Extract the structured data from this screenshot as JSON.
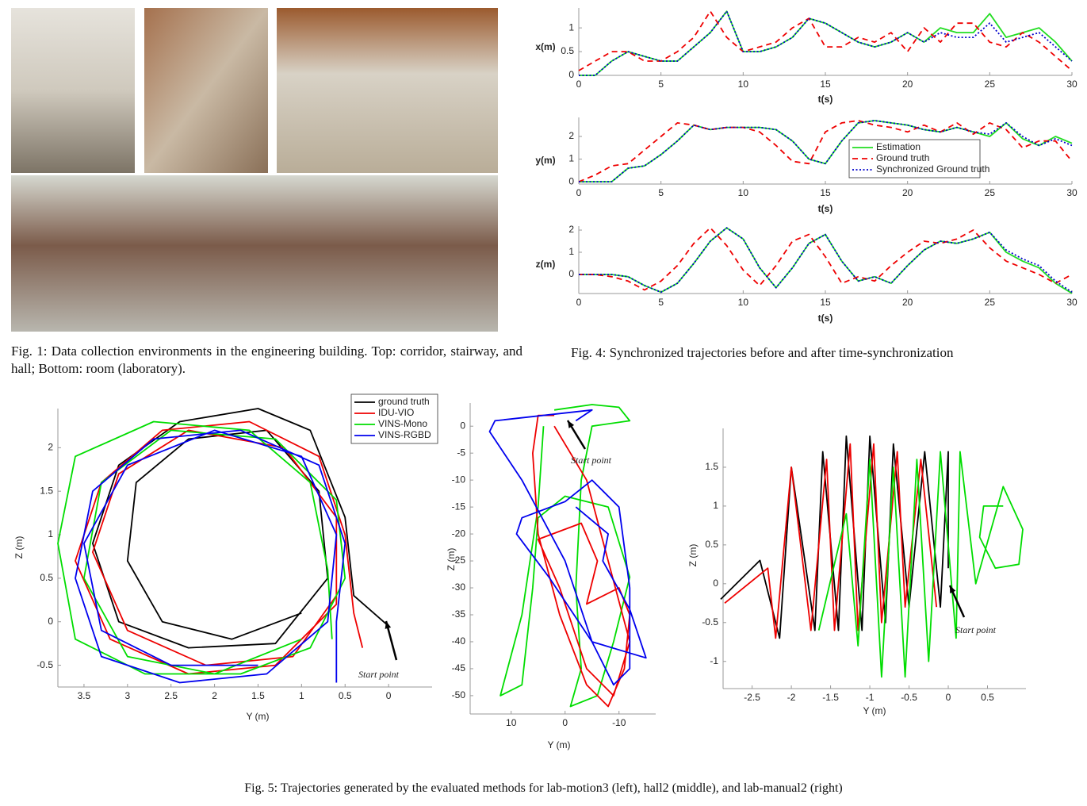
{
  "fig1_caption": "Fig. 1: Data collection environments in the engineering building. Top: corridor, stairway, and hall; Bottom: room (laboratory).",
  "fig4_caption": "Fig. 4: Synchronized trajectories before and after time-synchronization",
  "fig5_caption": "Fig. 5: Trajectories generated by the evaluated methods for lab-motion3 (left), hall2 (middle), and lab-manual2 (right)",
  "chart_data": [
    {
      "type": "line",
      "xlabel": "t(s)",
      "ylabel": "x(m)",
      "xlim": [
        0,
        30
      ],
      "ylim": [
        0,
        1.42
      ],
      "xticks": [
        0,
        5,
        10,
        15,
        20,
        25,
        30
      ],
      "yticks": [
        0,
        0.5,
        1
      ],
      "x": [
        0,
        1,
        2,
        3,
        4,
        5,
        6,
        7,
        8,
        9,
        10,
        11,
        12,
        13,
        14,
        15,
        16,
        17,
        18,
        19,
        20,
        21,
        22,
        23,
        24,
        25,
        26,
        27,
        28,
        29,
        30
      ],
      "series": [
        {
          "name": "Estimation",
          "color": "#22dd22",
          "line_style": "solid",
          "values": [
            0,
            0,
            0.3,
            0.5,
            0.4,
            0.3,
            0.3,
            0.6,
            0.9,
            1.35,
            0.5,
            0.5,
            0.6,
            0.8,
            1.2,
            1.1,
            0.9,
            0.7,
            0.6,
            0.7,
            0.9,
            0.7,
            1.0,
            0.9,
            0.9,
            1.3,
            0.8,
            0.9,
            1.0,
            0.7,
            0.3
          ]
        },
        {
          "name": "Ground truth",
          "color": "#ee0000",
          "line_style": "dashed",
          "values": [
            0.1,
            0.3,
            0.5,
            0.5,
            0.3,
            0.3,
            0.5,
            0.8,
            1.35,
            0.8,
            0.5,
            0.6,
            0.7,
            1.0,
            1.2,
            0.6,
            0.6,
            0.8,
            0.7,
            0.9,
            0.5,
            1.0,
            0.7,
            1.1,
            1.1,
            0.7,
            0.6,
            0.9,
            0.7,
            0.4,
            0.1
          ]
        },
        {
          "name": "Synchronized Ground truth",
          "color": "#0000cc",
          "line_style": "dotted",
          "values": [
            0,
            0,
            0.3,
            0.5,
            0.4,
            0.3,
            0.3,
            0.6,
            0.9,
            1.35,
            0.5,
            0.5,
            0.6,
            0.8,
            1.2,
            1.1,
            0.9,
            0.7,
            0.6,
            0.7,
            0.9,
            0.7,
            0.9,
            0.8,
            0.8,
            1.1,
            0.7,
            0.8,
            0.9,
            0.6,
            0.3
          ]
        }
      ]
    },
    {
      "type": "line",
      "xlabel": "t(s)",
      "ylabel": "y(m)",
      "xlim": [
        0,
        30
      ],
      "ylim": [
        -0.1,
        2.84
      ],
      "xticks": [
        0,
        5,
        10,
        15,
        20,
        25,
        30
      ],
      "yticks": [
        0,
        1,
        2
      ],
      "legend": "center right",
      "x": [
        0,
        1,
        2,
        3,
        4,
        5,
        6,
        7,
        8,
        9,
        10,
        11,
        12,
        13,
        14,
        15,
        16,
        17,
        18,
        19,
        20,
        21,
        22,
        23,
        24,
        25,
        26,
        27,
        28,
        29,
        30
      ],
      "series": [
        {
          "name": "Estimation",
          "color": "#22dd22",
          "line_style": "solid",
          "values": [
            0,
            0,
            0,
            0.6,
            0.7,
            1.2,
            1.8,
            2.5,
            2.3,
            2.4,
            2.4,
            2.4,
            2.3,
            1.8,
            1.0,
            0.8,
            1.8,
            2.6,
            2.7,
            2.6,
            2.5,
            2.3,
            2.2,
            2.4,
            2.2,
            2.0,
            2.6,
            1.9,
            1.6,
            2.0,
            1.7
          ]
        },
        {
          "name": "Ground truth",
          "color": "#ee0000",
          "line_style": "dashed",
          "values": [
            0,
            0.3,
            0.7,
            0.8,
            1.4,
            2.0,
            2.6,
            2.5,
            2.3,
            2.4,
            2.4,
            2.2,
            1.6,
            0.9,
            0.8,
            2.2,
            2.6,
            2.7,
            2.5,
            2.4,
            2.2,
            2.5,
            2.2,
            2.6,
            2.1,
            2.6,
            2.3,
            1.5,
            1.8,
            1.8,
            0.9
          ]
        },
        {
          "name": "Synchronized Ground truth",
          "color": "#0000cc",
          "line_style": "dotted",
          "values": [
            0,
            0,
            0,
            0.6,
            0.7,
            1.2,
            1.8,
            2.5,
            2.3,
            2.4,
            2.4,
            2.4,
            2.3,
            1.8,
            1.0,
            0.8,
            1.8,
            2.6,
            2.7,
            2.6,
            2.5,
            2.3,
            2.2,
            2.4,
            2.2,
            2.1,
            2.6,
            2.0,
            1.6,
            1.9,
            1.6
          ]
        }
      ]
    },
    {
      "type": "line",
      "xlabel": "t(s)",
      "ylabel": "z(m)",
      "xlim": [
        0,
        30
      ],
      "ylim": [
        -0.86,
        2.18
      ],
      "xticks": [
        0,
        5,
        10,
        15,
        20,
        25,
        30
      ],
      "yticks": [
        0,
        1,
        2
      ],
      "x": [
        0,
        1,
        2,
        3,
        4,
        5,
        6,
        7,
        8,
        9,
        10,
        11,
        12,
        13,
        14,
        15,
        16,
        17,
        18,
        19,
        20,
        21,
        22,
        23,
        24,
        25,
        26,
        27,
        28,
        29,
        30
      ],
      "series": [
        {
          "name": "Estimation",
          "color": "#22dd22",
          "line_style": "solid",
          "values": [
            0,
            0,
            0,
            -0.1,
            -0.5,
            -0.8,
            -0.4,
            0.5,
            1.5,
            2.1,
            1.6,
            0.3,
            -0.6,
            0.3,
            1.4,
            1.8,
            0.6,
            -0.3,
            -0.1,
            -0.4,
            0.4,
            1.1,
            1.5,
            1.4,
            1.6,
            1.9,
            1.0,
            0.6,
            0.3,
            -0.4,
            -0.85
          ]
        },
        {
          "name": "Ground truth",
          "color": "#ee0000",
          "line_style": "dashed",
          "values": [
            0,
            0,
            -0.1,
            -0.3,
            -0.7,
            -0.3,
            0.4,
            1.4,
            2.1,
            1.3,
            0.2,
            -0.5,
            0.4,
            1.5,
            1.8,
            0.8,
            -0.4,
            -0.1,
            -0.3,
            0.4,
            1.0,
            1.5,
            1.4,
            1.6,
            2.0,
            1.2,
            0.6,
            0.3,
            0.0,
            -0.4,
            0.0
          ]
        },
        {
          "name": "Synchronized Ground truth",
          "color": "#0000cc",
          "line_style": "dotted",
          "values": [
            0,
            0,
            0,
            -0.1,
            -0.5,
            -0.8,
            -0.4,
            0.5,
            1.5,
            2.1,
            1.6,
            0.3,
            -0.6,
            0.3,
            1.4,
            1.8,
            0.6,
            -0.3,
            -0.1,
            -0.4,
            0.4,
            1.1,
            1.5,
            1.4,
            1.6,
            1.9,
            1.1,
            0.7,
            0.4,
            -0.3,
            -0.8
          ]
        }
      ]
    },
    {
      "type": "line",
      "xlabel": "Y (m)",
      "ylabel": "Z (m)",
      "xlim": [
        3.8,
        -0.5
      ],
      "ylim": [
        -0.75,
        2.45
      ],
      "xticks": [
        3.5,
        3,
        2.5,
        2,
        1.5,
        1,
        0.5,
        0
      ],
      "yticks": [
        -0.5,
        0,
        0.5,
        1,
        1.5,
        2
      ],
      "legend": "upper right",
      "annotation": "Start point",
      "series": [
        {
          "name": "ground truth",
          "color": "#000000",
          "line_style": "solid",
          "x": [
            0,
            0.4,
            0.5,
            0.9,
            1.5,
            2.4,
            3.1,
            3.4,
            3.1,
            2.3,
            1.3,
            0.7,
            0.8,
            1.4,
            2.3,
            2.9,
            3.0,
            2.6,
            1.8,
            1.0
          ],
          "y": [
            -0.05,
            0.3,
            1.2,
            2.2,
            2.45,
            2.3,
            1.8,
            0.9,
            0.0,
            -0.3,
            -0.25,
            0.5,
            1.5,
            2.2,
            2.1,
            1.6,
            0.7,
            0.0,
            -0.2,
            0.1
          ]
        },
        {
          "name": "IDU-VIO",
          "color": "#ee0000",
          "line_style": "solid",
          "x": [
            0.3,
            0.4,
            0.5,
            0.8,
            1.6,
            2.6,
            3.3,
            3.6,
            3.2,
            2.3,
            1.3,
            0.6,
            0.6,
            1.2,
            2.3,
            3.1,
            3.4,
            3.0,
            2.1,
            1.1,
            0.6
          ],
          "y": [
            -0.3,
            0.1,
            1.0,
            1.9,
            2.3,
            2.2,
            1.6,
            0.7,
            -0.2,
            -0.6,
            -0.5,
            0.2,
            1.2,
            2.0,
            2.2,
            1.7,
            0.8,
            -0.1,
            -0.5,
            -0.4,
            0.3
          ]
        },
        {
          "name": "VINS-Mono",
          "color": "#00dd00",
          "line_style": "solid",
          "x": [
            0.65,
            0.7,
            0.9,
            1.6,
            2.7,
            3.6,
            3.8,
            3.6,
            2.8,
            1.7,
            0.9,
            0.5,
            0.6,
            1.3,
            2.5,
            3.3,
            3.5,
            3.0,
            2.0,
            1.0
          ],
          "y": [
            -0.2,
            0.6,
            1.6,
            2.2,
            2.3,
            1.9,
            0.9,
            -0.2,
            -0.6,
            -0.6,
            -0.3,
            0.5,
            1.4,
            2.1,
            2.2,
            1.6,
            0.5,
            -0.4,
            -0.6,
            -0.2
          ]
        },
        {
          "name": "VINS-RGBD",
          "color": "#0000ee",
          "line_style": "solid",
          "x": [
            0.6,
            0.6,
            0.5,
            0.8,
            1.7,
            2.7,
            3.4,
            3.6,
            3.3,
            2.4,
            1.4,
            0.7,
            0.6,
            1.0,
            2.0,
            3.0,
            3.5,
            3.3,
            2.5,
            1.5
          ],
          "y": [
            -0.7,
            0.0,
            0.9,
            1.8,
            2.2,
            2.1,
            1.5,
            0.5,
            -0.4,
            -0.7,
            -0.6,
            0.0,
            1.0,
            1.9,
            2.2,
            1.8,
            0.9,
            -0.1,
            -0.5,
            -0.5
          ]
        }
      ]
    },
    {
      "type": "line",
      "xlabel": "Y (m)",
      "ylabel": "Z (m)",
      "xlim": [
        17.6,
        -16.8
      ],
      "ylim": [
        -53.4,
        4.3
      ],
      "xticks": [
        10,
        0,
        -10
      ],
      "yticks": [
        0,
        -5,
        -10,
        -15,
        -20,
        -25,
        -30,
        -35,
        -40,
        -45,
        -50
      ],
      "annotation": "Start point",
      "series": [
        {
          "color": "#00dd00",
          "line_style": "solid",
          "x": [
            2,
            -5,
            -10,
            -12,
            -5,
            -3,
            -2,
            -3,
            -1,
            -6,
            -9,
            -12,
            -8,
            0,
            5,
            6,
            8,
            12,
            8,
            5,
            4
          ],
          "y": [
            3,
            4,
            3.5,
            1,
            0,
            -10,
            -30,
            -45,
            -52,
            -50,
            -40,
            -28,
            -15,
            -13,
            -17,
            -30,
            -48,
            -50,
            -35,
            -15,
            0
          ]
        },
        {
          "color": "#ee0000",
          "line_style": "solid",
          "x": [
            2,
            5,
            6,
            5,
            1,
            -4,
            -8,
            -11,
            -12,
            -10,
            -4,
            -6,
            -3,
            5,
            1,
            -4,
            -9,
            -12,
            -4,
            2
          ],
          "y": [
            2,
            2,
            -5,
            -20,
            -35,
            -48,
            -52,
            -45,
            -35,
            -30,
            -33,
            -25,
            -18,
            -21,
            -30,
            -45,
            -50,
            -40,
            -10,
            0
          ]
        },
        {
          "color": "#0000ee",
          "line_style": "solid",
          "x": [
            -2,
            -5,
            13,
            14,
            8,
            0,
            -5,
            -9,
            -12,
            -12,
            -10,
            -5,
            0,
            8,
            9,
            3,
            -5,
            -15,
            -12,
            -7,
            -8,
            -2
          ],
          "y": [
            1,
            3,
            1,
            -1,
            -10,
            -25,
            -40,
            -48,
            -45,
            -30,
            -15,
            -10,
            -14,
            -17,
            -20,
            -28,
            -40,
            -43,
            -34,
            -25,
            -20,
            -15
          ]
        }
      ]
    },
    {
      "type": "line",
      "xlabel": "Y (m)",
      "ylabel": "Z (m)",
      "xlim": [
        -2.87,
        0.99
      ],
      "ylim": [
        -1.35,
        2.0
      ],
      "xticks": [
        -2.5,
        -2,
        -1.5,
        -1,
        -0.5,
        0,
        0.5
      ],
      "yticks": [
        -1,
        -0.5,
        0,
        0.5,
        1,
        1.5
      ],
      "annotation": "Start point",
      "series": [
        {
          "color": "#000000",
          "line_style": "solid",
          "x": [
            -2.9,
            -2.4,
            -2.15,
            -2.0,
            -1.7,
            -1.6,
            -1.4,
            -1.3,
            -1.1,
            -1.0,
            -0.8,
            -0.7,
            -0.5,
            -0.3,
            -0.1,
            0,
            0
          ],
          "y": [
            -0.2,
            0.3,
            -0.7,
            1.5,
            -0.6,
            1.7,
            -0.6,
            1.9,
            -0.6,
            1.9,
            -0.5,
            1.8,
            -0.3,
            1.7,
            -0.3,
            1.7,
            0.2
          ]
        },
        {
          "color": "#ee0000",
          "line_style": "solid",
          "x": [
            -2.85,
            -2.3,
            -2.2,
            -2.0,
            -1.75,
            -1.55,
            -1.45,
            -1.25,
            -1.15,
            -0.95,
            -0.85,
            -0.65,
            -0.55,
            -0.35,
            -0.15
          ],
          "y": [
            -0.25,
            0.2,
            -0.7,
            1.5,
            -0.6,
            1.6,
            -0.6,
            1.8,
            -0.6,
            1.8,
            -0.5,
            1.7,
            -0.3,
            1.6,
            -0.3
          ]
        },
        {
          "color": "#00dd00",
          "line_style": "solid",
          "x": [
            -1.65,
            -1.3,
            -1.15,
            -1.0,
            -0.85,
            -0.7,
            -0.55,
            -0.4,
            -0.25,
            -0.1,
            0.1,
            0.15,
            0.35,
            0.7,
            0.95,
            0.9,
            0.6,
            0.4,
            0.45,
            0.7
          ],
          "y": [
            -0.6,
            0.9,
            -0.8,
            1.6,
            -1.2,
            1.5,
            -1.2,
            1.6,
            -1.0,
            1.7,
            -0.7,
            1.7,
            0.0,
            1.25,
            0.7,
            0.25,
            0.2,
            0.6,
            1.0,
            1.0
          ]
        }
      ]
    }
  ]
}
